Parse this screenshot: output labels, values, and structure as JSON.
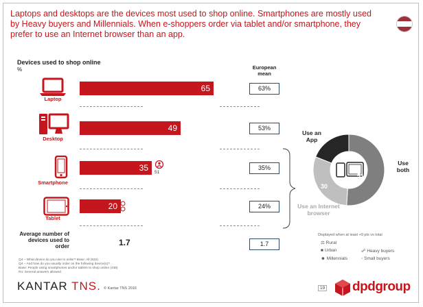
{
  "headline": "Laptops and desktops are the devices most used to shop online. Smartphones are mostly used by Heavy buyers and Millennials. When e-shoppers order via tablet and/or smartphone, they prefer to use an Internet browser than an app.",
  "flag_colors": [
    "#9e3039",
    "#ffffff",
    "#9e3039"
  ],
  "section_title": "Devices used to shop online",
  "unit": "%",
  "european_mean_header": "European mean",
  "chart_data": [
    {
      "type": "bar",
      "categories": [
        "Laptop",
        "Desktop",
        "Smartphone",
        "Tablet"
      ],
      "values": [
        65,
        49,
        35,
        20
      ],
      "xlim": [
        0,
        100
      ],
      "european_mean": [
        "63%",
        "53%",
        "35%",
        "24%"
      ],
      "sub_indicators": [
        {
          "category": "Smartphone",
          "value": "51"
        }
      ],
      "color": "#c4161c"
    },
    {
      "type": "pie",
      "categories": [
        "Use both",
        "Use an Internet browser",
        "Use an App"
      ],
      "values": [
        51,
        30,
        19
      ],
      "value_labels": [
        "51",
        "30",
        ""
      ],
      "colors": [
        "#7f7f7f",
        "#bfbfbf",
        "#262626"
      ]
    }
  ],
  "average": {
    "label": "Average number of devices used to order",
    "value": "1.7",
    "european_mean": "1.7"
  },
  "footnotes": [
    "Q4 – What device do you use to order? Base: All (532)",
    "Q4 – And how do you usually order on the following device(s)?",
    "Base: People using smartphones and/or tablets to shop online (438)",
    "Ro: Several answers allowed"
  ],
  "legend": {
    "caption": "Displayed when at least +9 pts vs total",
    "items": [
      "Rural",
      "Urban",
      "Millennials",
      "Heavy buyers",
      "Small buyers"
    ]
  },
  "footer": {
    "brand_left": "KANTAR",
    "brand_left_accent": "TNS.",
    "copyright": "© Kantar TNS 2016",
    "page": "19",
    "brand_right": "dpdgroup"
  }
}
